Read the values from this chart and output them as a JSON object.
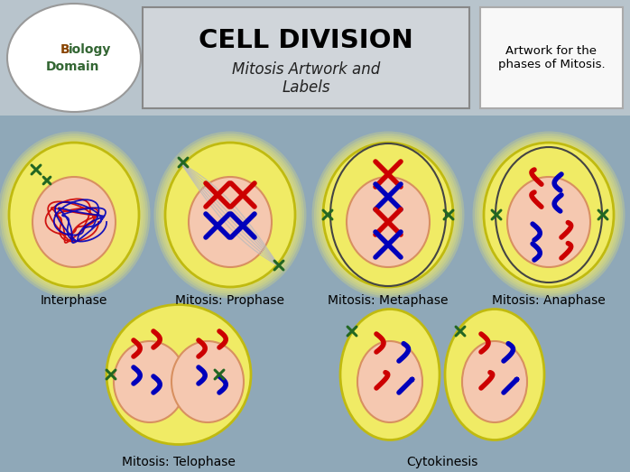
{
  "bg_color": "#8fa8b8",
  "header_bg": "#b8c4cc",
  "title_box_bg": "#d0d5da",
  "white_box_bg": "#f8f8f8",
  "title_text": "CELL DIVISION",
  "subtitle_text": "Mitosis Artwork and\nLabels",
  "side_text": "Artwork for the\nphases of Mitosis.",
  "labels": [
    "Interphase",
    "Mitosis: Prophase",
    "Mitosis: Metaphase",
    "Mitosis: Anaphase",
    "Mitosis: Telophase",
    "Cytokinesis"
  ],
  "red": "#cc0000",
  "blue": "#0000bb",
  "green": "#226622",
  "spindle_color": "#555555",
  "cell_outer_color": "#f0eb60",
  "cell_outer_edge": "#c0ba10",
  "cell_inner_color": "#f5c8b0",
  "cell_inner_edge": "#d89060"
}
